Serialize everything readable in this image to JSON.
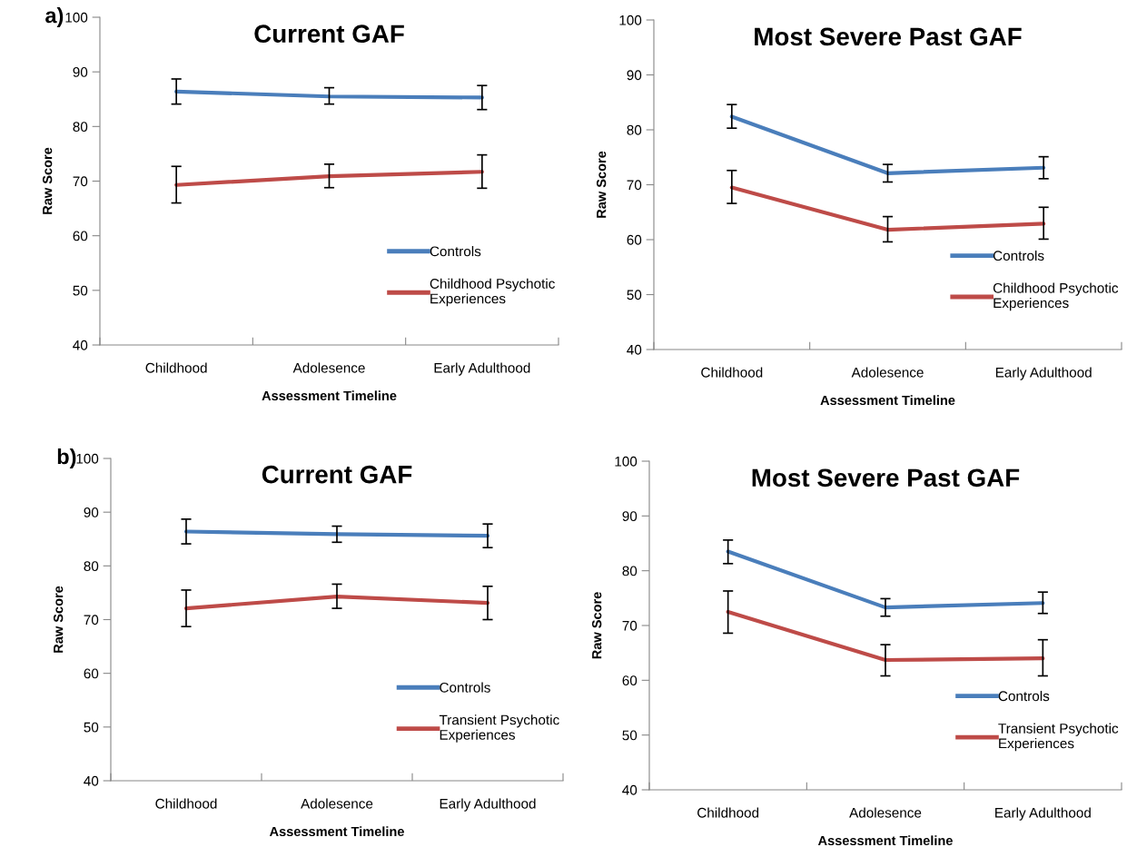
{
  "chart_data": [
    {
      "type": "line",
      "title": "Current GAF",
      "xlabel": "Assessment Timeline",
      "ylabel": "Raw Score",
      "annotations": [
        "a)"
      ],
      "categories": [
        "Childhood",
        "Adolesence",
        "Early Adulthood"
      ],
      "ylim": [
        40,
        100
      ],
      "yticks": [
        40,
        50,
        60,
        70,
        80,
        90,
        100
      ],
      "grid": false,
      "legend": "bottom right",
      "marker": "none",
      "line_style": "solid",
      "series": [
        {
          "name": "Controls",
          "color": "#4a7ebb",
          "values": [
            86.4,
            85.5,
            85.3
          ],
          "errors": [
            [
              84.1,
              88.7
            ],
            [
              84.1,
              87.1
            ],
            [
              83.1,
              87.5
            ]
          ]
        },
        {
          "name": "Childhood Psychotic Experiences",
          "color": "#be4b48",
          "values": [
            69.3,
            70.9,
            71.7
          ],
          "errors": [
            [
              66.0,
              72.7
            ],
            [
              68.8,
              73.1
            ],
            [
              68.7,
              74.8
            ]
          ]
        }
      ]
    },
    {
      "type": "line",
      "title": "Most Severe Past GAF",
      "xlabel": "Assessment Timeline",
      "ylabel": "Raw Score",
      "categories": [
        "Childhood",
        "Adolesence",
        "Early Adulthood"
      ],
      "ylim": [
        40,
        100
      ],
      "yticks": [
        40,
        50,
        60,
        70,
        80,
        90,
        100
      ],
      "grid": false,
      "legend": "bottom right",
      "marker": "none",
      "line_style": "solid",
      "series": [
        {
          "name": "Controls",
          "color": "#4a7ebb",
          "values": [
            82.4,
            72.1,
            73.1
          ],
          "errors": [
            [
              80.3,
              84.6
            ],
            [
              70.5,
              73.7
            ],
            [
              71.1,
              75.1
            ]
          ]
        },
        {
          "name": "Childhood Psychotic Experiences",
          "color": "#be4b48",
          "values": [
            69.5,
            61.8,
            62.9
          ],
          "errors": [
            [
              66.6,
              72.6
            ],
            [
              59.6,
              64.2
            ],
            [
              60.1,
              65.9
            ]
          ]
        }
      ]
    },
    {
      "type": "line",
      "title": "Current GAF",
      "xlabel": "Assessment Timeline",
      "ylabel": "Raw Score",
      "annotations": [
        "b)"
      ],
      "categories": [
        "Childhood",
        "Adolesence",
        "Early Adulthood"
      ],
      "ylim": [
        40,
        100
      ],
      "yticks": [
        40,
        50,
        60,
        70,
        80,
        90,
        100
      ],
      "grid": false,
      "legend": "bottom right",
      "marker": "none",
      "line_style": "solid",
      "series": [
        {
          "name": "Controls",
          "color": "#4a7ebb",
          "values": [
            86.4,
            85.9,
            85.6
          ],
          "errors": [
            [
              84.1,
              88.7
            ],
            [
              84.4,
              87.4
            ],
            [
              83.4,
              87.8
            ]
          ]
        },
        {
          "name": "Transient Psychotic Experiences",
          "color": "#be4b48",
          "values": [
            72.1,
            74.3,
            73.1
          ],
          "errors": [
            [
              68.7,
              75.5
            ],
            [
              72.1,
              76.6
            ],
            [
              70.0,
              76.2
            ]
          ]
        }
      ]
    },
    {
      "type": "line",
      "title": "Most Severe Past GAF",
      "xlabel": "Assessment Timeline",
      "ylabel": "Raw Score",
      "categories": [
        "Childhood",
        "Adolesence",
        "Early Adulthood"
      ],
      "ylim": [
        40,
        100
      ],
      "yticks": [
        40,
        50,
        60,
        70,
        80,
        90,
        100
      ],
      "grid": false,
      "legend": "bottom right",
      "marker": "none",
      "line_style": "solid",
      "series": [
        {
          "name": "Controls",
          "color": "#4a7ebb",
          "values": [
            83.5,
            73.3,
            74.1
          ],
          "errors": [
            [
              81.3,
              85.6
            ],
            [
              71.7,
              74.9
            ],
            [
              72.2,
              76.1
            ]
          ]
        },
        {
          "name": "Transient Psychotic Experiences",
          "color": "#be4b48",
          "values": [
            72.5,
            63.7,
            64.0
          ],
          "errors": [
            [
              68.6,
              76.3
            ],
            [
              60.8,
              66.5
            ],
            [
              60.8,
              67.4
            ]
          ]
        }
      ]
    }
  ]
}
